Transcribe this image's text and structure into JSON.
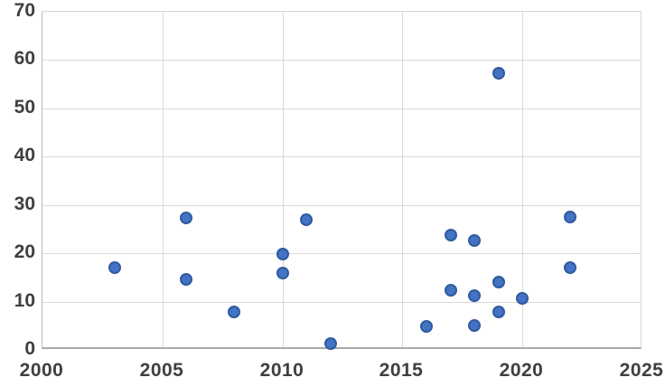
{
  "chart_data": {
    "type": "scatter",
    "title": "",
    "xlabel": "",
    "ylabel": "",
    "xlim": [
      2000,
      2025
    ],
    "ylim": [
      0,
      70
    ],
    "x_ticks": [
      2000,
      2005,
      2010,
      2015,
      2020,
      2025
    ],
    "y_ticks": [
      0,
      10,
      20,
      30,
      40,
      50,
      60,
      70
    ],
    "grid": true,
    "legend": false,
    "colors": {
      "marker_fill": "#4472C4",
      "marker_border": "#2E5B9F",
      "gridline": "#D9D9D9",
      "axis_line": "#A9A9A9",
      "tick_label": "#3F3F3F",
      "background": "#FFFFFF"
    },
    "points": [
      {
        "x": 2003,
        "y": 17
      },
      {
        "x": 2006,
        "y": 27.3
      },
      {
        "x": 2006,
        "y": 14.6
      },
      {
        "x": 2008,
        "y": 7.8
      },
      {
        "x": 2010,
        "y": 19.8
      },
      {
        "x": 2010,
        "y": 16
      },
      {
        "x": 2011,
        "y": 27
      },
      {
        "x": 2012,
        "y": 1.3
      },
      {
        "x": 2016,
        "y": 4.8
      },
      {
        "x": 2017,
        "y": 23.7
      },
      {
        "x": 2017,
        "y": 12.3
      },
      {
        "x": 2018,
        "y": 22.6
      },
      {
        "x": 2018,
        "y": 11.2
      },
      {
        "x": 2018,
        "y": 5
      },
      {
        "x": 2019,
        "y": 57.2
      },
      {
        "x": 2019,
        "y": 14
      },
      {
        "x": 2019,
        "y": 7.8
      },
      {
        "x": 2020,
        "y": 10.7
      },
      {
        "x": 2022,
        "y": 27.5
      },
      {
        "x": 2022,
        "y": 17
      }
    ]
  }
}
